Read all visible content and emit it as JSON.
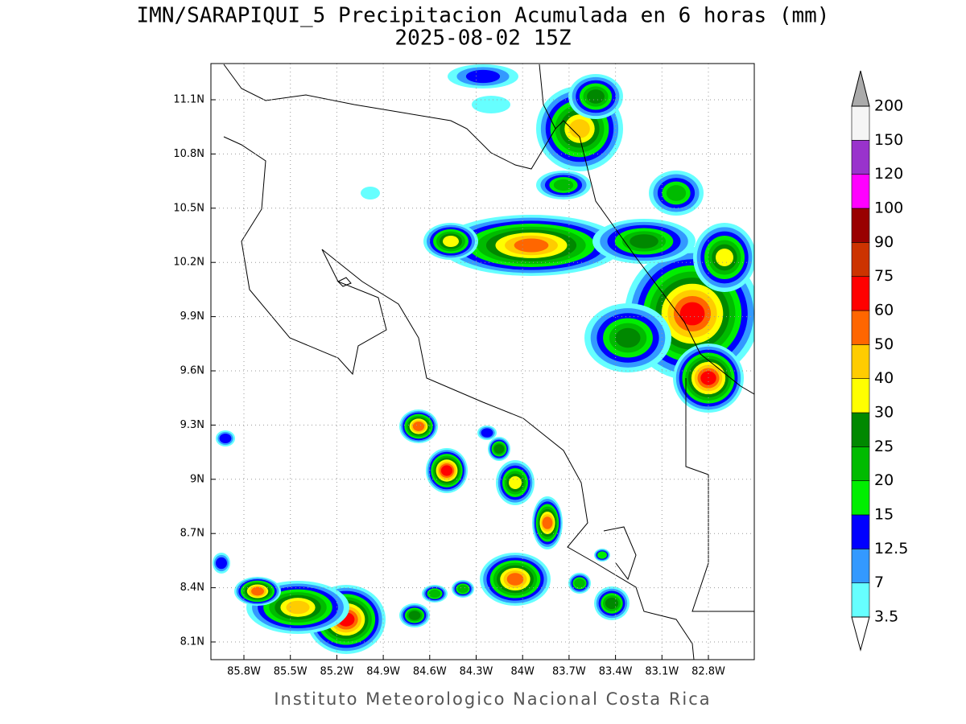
{
  "header": {
    "title": "IMN/SARAPIQUI_5 Precipitacion Acumulada en 6 horas (mm)",
    "subtitle": "2025-08-02 15Z"
  },
  "map": {
    "lat_labels": [
      "11.1N",
      "10.8N",
      "10.5N",
      "10.2N",
      "9.9N",
      "9.6N",
      "9.3N",
      "9N",
      "8.7N",
      "8.4N",
      "8.1N"
    ],
    "lon_labels": [
      "85.8W",
      "85.5W",
      "85.2W",
      "84.9W",
      "84.6W",
      "84.3W",
      "84W",
      "83.7W",
      "83.4W",
      "83.1W",
      "82.8W"
    ]
  },
  "colorbar": {
    "labels": [
      "3.5",
      "7",
      "12.5",
      "15",
      "20",
      "25",
      "30",
      "40",
      "50",
      "60",
      "75",
      "90",
      "100",
      "120",
      "150",
      "200"
    ],
    "colors": [
      "#66ffff",
      "#3399ff",
      "#0000ff",
      "#00ee00",
      "#00bb00",
      "#008800",
      "#ffff00",
      "#ffcc00",
      "#ff6600",
      "#ff0000",
      "#cc3300",
      "#990000",
      "#ff00ff",
      "#9933cc",
      "#f5f5f5"
    ],
    "over_color": "#aaaaaa",
    "under_color": "#ffffff"
  },
  "footer": "Instituto Meteorologico Nacional Costa Rica"
}
